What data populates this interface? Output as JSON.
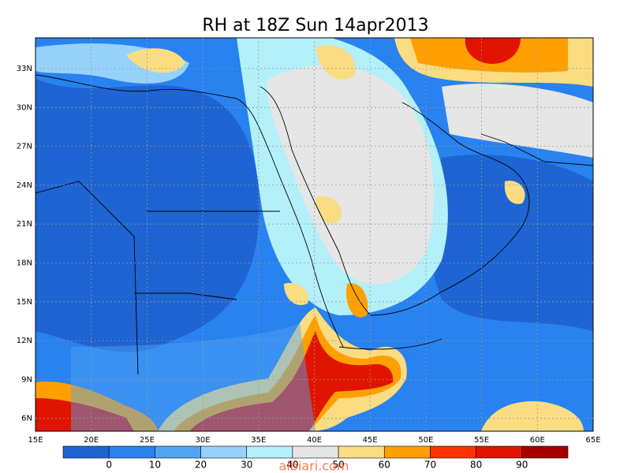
{
  "title": "RH at 18Z Sun 14apr2013",
  "lat_labels": [
    "33N",
    "30N",
    "27N",
    "24N",
    "21N",
    "18N",
    "15N",
    "12N",
    "9N",
    "6N"
  ],
  "lon_labels": [
    "15E",
    "20E",
    "25E",
    "30E",
    "35E",
    "40E",
    "45E",
    "50E",
    "55E",
    "60E",
    "65E"
  ],
  "colorbar": {
    "labels": [
      0,
      10,
      20,
      30,
      40,
      50,
      60,
      70,
      80,
      90
    ],
    "colors": [
      "#1e64d2",
      "#2882f0",
      "#50a5f5",
      "#96d2fa",
      "#b4f0fa",
      "#e6e6e6",
      "#fadc82",
      "#ffa000",
      "#ff3200",
      "#e11400",
      "#a50000"
    ]
  },
  "watermark": "albiari.com"
}
